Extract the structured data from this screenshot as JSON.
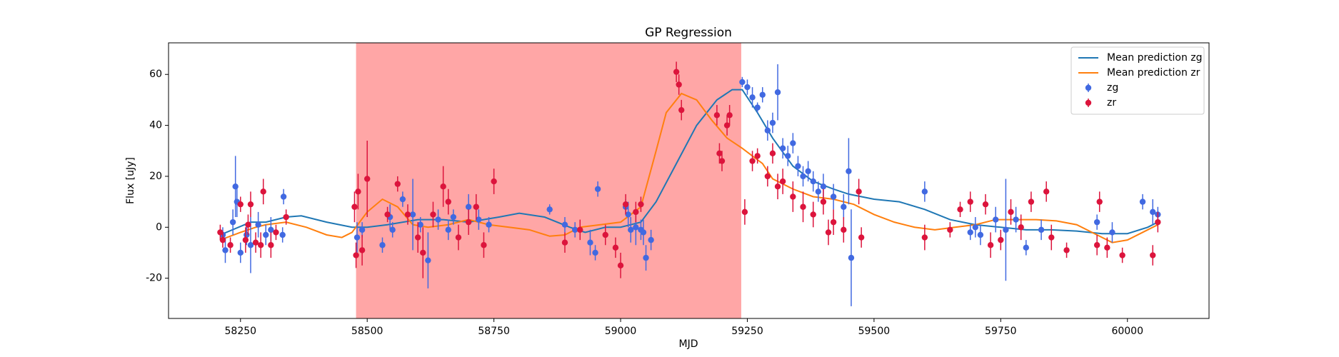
{
  "chart_data": {
    "type": "line",
    "title": "GP Regression",
    "x_label": "MJD",
    "y_label": "Flux [uJy]",
    "xlim": [
      58108,
      60161
    ],
    "ylim": [
      -35.8,
      72.4
    ],
    "xticks": [
      58250,
      58500,
      58750,
      59000,
      59250,
      59500,
      59750,
      60000
    ],
    "yticks": [
      -20,
      0,
      20,
      40,
      60
    ],
    "grid": false,
    "legend": "upper right",
    "span": [
      58478,
      59238
    ],
    "span_color": "#ff0000",
    "span_alpha": 0.35,
    "series": [
      {
        "name": "Mean prediction zg",
        "type": "line",
        "color": "#1f77b4",
        "x": [
          58210,
          58270,
          58300,
          58340,
          58370,
          58420,
          58470,
          58500,
          58540,
          58600,
          58650,
          58700,
          58760,
          58800,
          58850,
          58900,
          58930,
          58970,
          59000,
          59040,
          59070,
          59110,
          59150,
          59190,
          59220,
          59240,
          59270,
          59300,
          59340,
          59380,
          59420,
          59450,
          59500,
          59550,
          59600,
          59650,
          59700,
          59750,
          59800,
          59850,
          59900,
          59950,
          60000,
          60040,
          60060
        ],
        "values": [
          -3,
          2,
          2,
          4,
          4.5,
          2,
          0,
          0,
          1,
          3,
          3,
          2,
          4,
          5.5,
          4,
          0,
          -2,
          0,
          0,
          2,
          10,
          25,
          40,
          50,
          54,
          54,
          45,
          35,
          24,
          18,
          15,
          13,
          11,
          10,
          7,
          3,
          1,
          0,
          -1,
          -1,
          -1.5,
          -2.5,
          -2.5,
          0,
          2
        ]
      },
      {
        "name": "Mean prediction zr",
        "type": "line",
        "color": "#ff7f0e",
        "x": [
          58210,
          58250,
          58280,
          58300,
          58340,
          58380,
          58420,
          58450,
          58470,
          58500,
          58530,
          58560,
          58590,
          58620,
          58660,
          58700,
          58740,
          58780,
          58820,
          58860,
          58890,
          58920,
          58960,
          59000,
          59040,
          59070,
          59090,
          59120,
          59150,
          59180,
          59210,
          59240,
          59260,
          59280,
          59300,
          59340,
          59380,
          59420,
          59460,
          59500,
          59540,
          59580,
          59620,
          59660,
          59700,
          59740,
          59780,
          59820,
          59860,
          59900,
          59940,
          59970,
          60000,
          60030,
          60060
        ],
        "values": [
          -5,
          -2,
          0,
          1,
          2,
          0,
          -3,
          -4,
          -2,
          6,
          11,
          8,
          1,
          0,
          1,
          3,
          1,
          0,
          -1,
          -3.5,
          -3,
          0,
          1,
          2,
          8,
          30,
          45,
          52.5,
          50,
          42,
          35,
          31,
          28,
          25,
          19,
          15,
          12,
          11,
          9,
          5,
          2,
          0,
          -1,
          0,
          1,
          3,
          3,
          3,
          2.5,
          1,
          -3,
          -6,
          -5,
          -2,
          1
        ]
      },
      {
        "name": "zg",
        "type": "errorbar",
        "color": "#4169e1",
        "x": [
          58215,
          58220,
          58235,
          58240,
          58243,
          58250,
          58262,
          58270,
          58285,
          58300,
          58310,
          58335,
          58333,
          58480,
          58490,
          58530,
          58545,
          58550,
          58570,
          58590,
          58605,
          58620,
          58640,
          58660,
          58670,
          58700,
          58720,
          58740,
          58860,
          58890,
          58910,
          58940,
          58950,
          58955,
          59010,
          59015,
          59020,
          59030,
          59040,
          59045,
          59050,
          59060,
          59240,
          59250,
          59260,
          59270,
          59280,
          59290,
          59300,
          59310,
          59320,
          59330,
          59340,
          59350,
          59360,
          59370,
          59380,
          59390,
          59400,
          59420,
          59440,
          59450,
          59455,
          59600,
          59690,
          59700,
          59710,
          59740,
          59760,
          59780,
          59800,
          59830,
          59940,
          59970,
          60030,
          60050,
          60060
        ],
        "values": [
          -3,
          -9,
          2,
          16,
          10,
          -10,
          -3,
          -7,
          1,
          -3,
          -1,
          12,
          -3,
          -4,
          -1,
          -7,
          4,
          -1,
          11,
          5,
          1,
          -13,
          3,
          -1,
          4,
          8,
          3,
          1,
          7,
          1,
          -1,
          -6,
          -10,
          15,
          8,
          5,
          -1,
          0,
          -1,
          -2,
          -12,
          -5,
          57,
          55,
          51,
          47,
          52,
          38,
          41,
          53,
          31,
          28,
          33,
          24,
          20,
          22,
          18,
          14,
          16,
          12,
          8,
          22,
          -12,
          14,
          -2,
          0,
          -3,
          3,
          -1,
          3,
          -8,
          -1,
          2,
          -2,
          10,
          6,
          5
        ],
        "errors": [
          3,
          5,
          5,
          12,
          6,
          4,
          4,
          11,
          5,
          4,
          5,
          3,
          3,
          6,
          3,
          3,
          5,
          3,
          3,
          14,
          3,
          11,
          4,
          4,
          3,
          5,
          4,
          3,
          2,
          3,
          3,
          5,
          3,
          3,
          3,
          5,
          5,
          7,
          4,
          5,
          5,
          4,
          2,
          3,
          4,
          2,
          3,
          4,
          4,
          11,
          4,
          4,
          4,
          4,
          4,
          4,
          4,
          4,
          5,
          5,
          5,
          13,
          19,
          4,
          3,
          4,
          4,
          5,
          20,
          5,
          3,
          4,
          3,
          4,
          3,
          5,
          3
        ]
      },
      {
        "name": "zr",
        "type": "errorbar",
        "color": "#dc143c",
        "x": [
          58210,
          58215,
          58230,
          58250,
          58260,
          58265,
          58270,
          58280,
          58290,
          58295,
          58310,
          58320,
          58340,
          58475,
          58478,
          58482,
          58490,
          58500,
          58540,
          58560,
          58580,
          58600,
          58610,
          58630,
          58650,
          58660,
          58680,
          58700,
          58715,
          58730,
          58750,
          58890,
          58920,
          58970,
          58990,
          59000,
          59010,
          59030,
          59040,
          59110,
          59115,
          59120,
          59190,
          59195,
          59200,
          59210,
          59215,
          59245,
          59260,
          59270,
          59290,
          59300,
          59310,
          59320,
          59340,
          59360,
          59380,
          59400,
          59410,
          59420,
          59440,
          59470,
          59475,
          59600,
          59650,
          59670,
          59690,
          59720,
          59730,
          59750,
          59770,
          59790,
          59810,
          59840,
          59850,
          59880,
          59940,
          59945,
          59960,
          59990,
          60050,
          60060
        ],
        "values": [
          -2,
          -5,
          -7,
          9,
          -5,
          1,
          9,
          -6,
          -7,
          14,
          -7,
          -2,
          4,
          8,
          -11,
          14,
          -9,
          19,
          5,
          17,
          5,
          -4,
          -10,
          5,
          16,
          10,
          -4,
          2,
          8,
          -7,
          18,
          -6,
          -1,
          -3,
          -8,
          -15,
          9,
          6,
          9,
          61,
          56,
          46,
          44,
          29,
          26,
          40,
          44,
          6,
          26,
          28,
          20,
          29,
          16,
          18,
          12,
          8,
          5,
          10,
          -2,
          2,
          -1,
          14,
          -4,
          -4,
          -1,
          7,
          10,
          9,
          -7,
          -5,
          6,
          0,
          10,
          14,
          -4,
          -9,
          -7,
          10,
          -8,
          -11,
          -11,
          2
        ],
        "errors": [
          3,
          3,
          3,
          3,
          5,
          4,
          5,
          4,
          5,
          5,
          5,
          3,
          3,
          6,
          5,
          7,
          6,
          15,
          3,
          3,
          4,
          6,
          10,
          5,
          8,
          5,
          5,
          5,
          5,
          5,
          5,
          4,
          4,
          4,
          4,
          5,
          4,
          4,
          3,
          4,
          4,
          4,
          4,
          4,
          4,
          4,
          4,
          5,
          4,
          3,
          4,
          4,
          5,
          5,
          6,
          6,
          5,
          5,
          5,
          5,
          5,
          5,
          4,
          5,
          3,
          3,
          4,
          4,
          5,
          4,
          5,
          5,
          4,
          4,
          5,
          3,
          4,
          4,
          4,
          3,
          4,
          4
        ]
      }
    ]
  }
}
